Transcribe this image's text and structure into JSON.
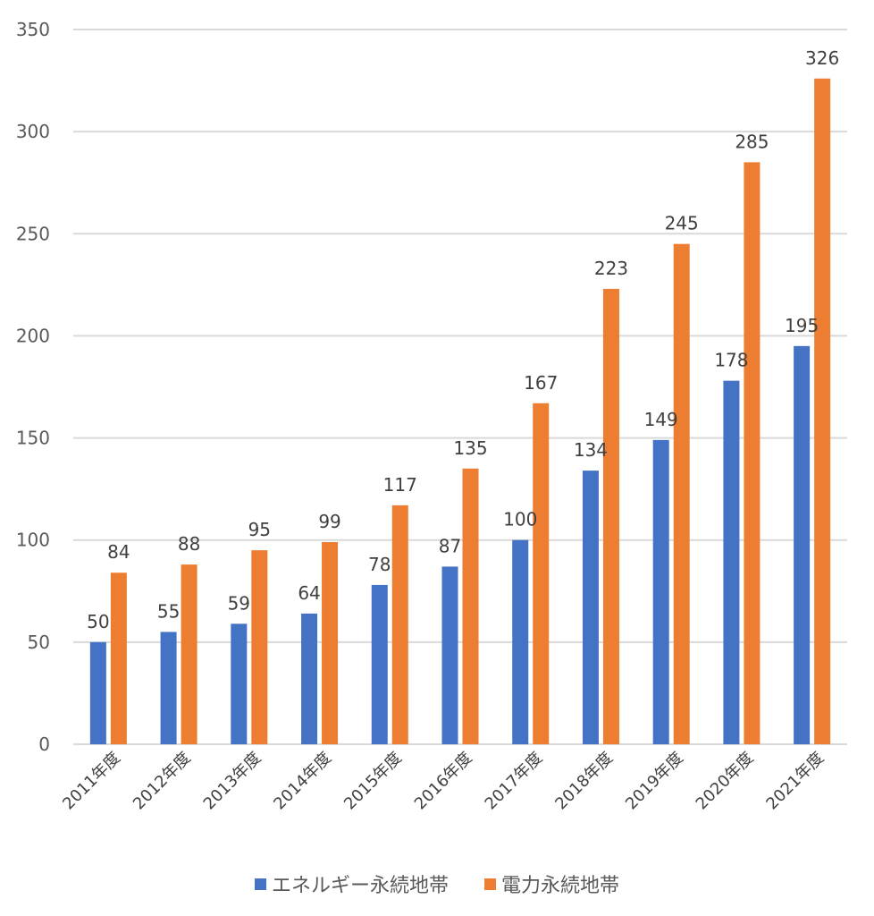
{
  "chart_data": {
    "type": "bar",
    "title": "",
    "xlabel": "",
    "ylabel": "",
    "ylim": [
      0,
      350
    ],
    "yticks": [
      0,
      50,
      100,
      150,
      200,
      250,
      300,
      350
    ],
    "grid": true,
    "legend_position": "bottom",
    "categories": [
      "2011年度",
      "2012年度",
      "2013年度",
      "2014年度",
      "2015年度",
      "2016年度",
      "2017年度",
      "2018年度",
      "2019年度",
      "2020年度",
      "2021年度"
    ],
    "series": [
      {
        "name": "エネルギー永続地帯",
        "color": "#4472C4",
        "values": [
          50,
          55,
          59,
          64,
          78,
          87,
          100,
          134,
          149,
          178,
          195
        ]
      },
      {
        "name": "電力永続地帯",
        "color": "#ED7D31",
        "values": [
          84,
          88,
          95,
          99,
          117,
          135,
          167,
          223,
          245,
          285,
          326
        ]
      }
    ]
  }
}
